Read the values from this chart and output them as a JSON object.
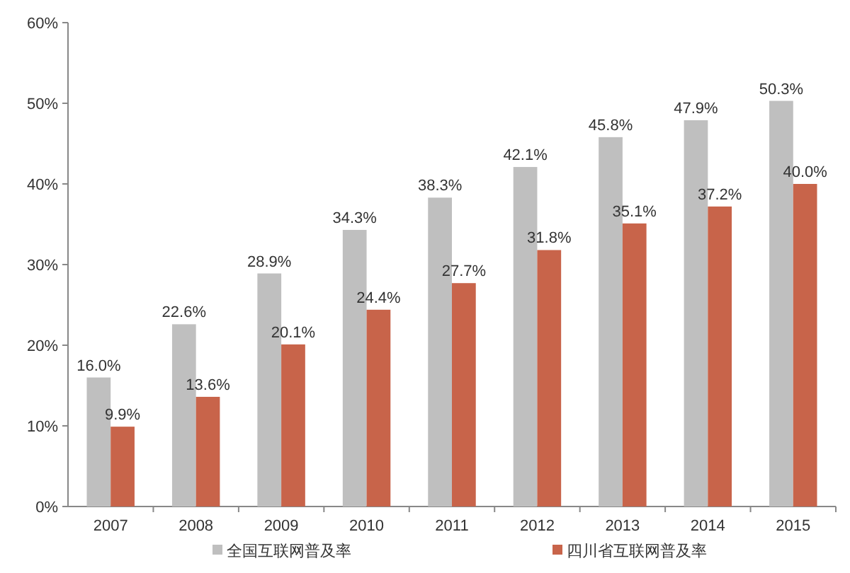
{
  "chart_data": {
    "type": "bar",
    "categories": [
      "2007",
      "2008",
      "2009",
      "2010",
      "2011",
      "2012",
      "2013",
      "2014",
      "2015"
    ],
    "series": [
      {
        "name": "全国互联网普及率",
        "color": "#bfbfbf",
        "values": [
          16.0,
          22.6,
          28.9,
          34.3,
          38.3,
          42.1,
          45.8,
          47.9,
          50.3
        ],
        "value_labels": [
          "16.0%",
          "22.6%",
          "28.9%",
          "34.3%",
          "38.3%",
          "42.1%",
          "45.8%",
          "47.9%",
          "50.3%"
        ]
      },
      {
        "name": "四川省互联网普及率",
        "color": "#c8644a",
        "values": [
          9.9,
          13.6,
          20.1,
          24.4,
          27.7,
          31.8,
          35.1,
          37.2,
          40.0
        ],
        "value_labels": [
          "9.9%",
          "13.6%",
          "20.1%",
          "24.4%",
          "27.7%",
          "31.8%",
          "35.1%",
          "37.2%",
          "40.0%"
        ]
      }
    ],
    "ylim": [
      0,
      60
    ],
    "yticks": [
      {
        "value": 0,
        "label": "0%"
      },
      {
        "value": 10,
        "label": "10%"
      },
      {
        "value": 20,
        "label": "20%"
      },
      {
        "value": 30,
        "label": "30%"
      },
      {
        "value": 40,
        "label": "40%"
      },
      {
        "value": 50,
        "label": "50%"
      },
      {
        "value": 60,
        "label": "60%"
      }
    ],
    "grid": false,
    "legend": "bottom"
  }
}
